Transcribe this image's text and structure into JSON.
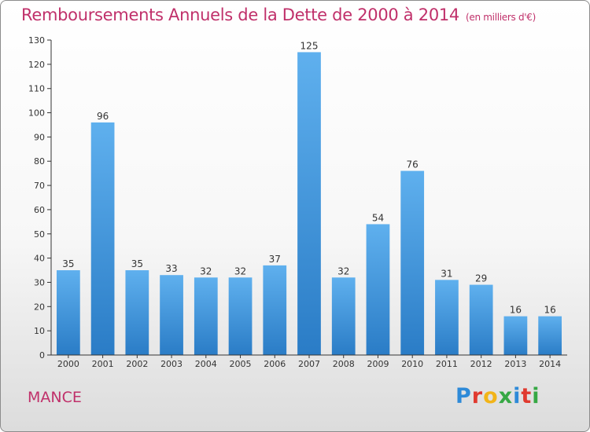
{
  "chart_data": {
    "type": "bar",
    "title": "Remboursements Annuels de la Dette de 2000 à 2014",
    "subtitle": "(en milliers d'€)",
    "categories": [
      "2000",
      "2001",
      "2002",
      "2003",
      "2004",
      "2005",
      "2006",
      "2007",
      "2008",
      "2009",
      "2010",
      "2011",
      "2012",
      "2013",
      "2014"
    ],
    "values": [
      35,
      96,
      35,
      33,
      32,
      32,
      37,
      125,
      32,
      54,
      76,
      31,
      29,
      16,
      16
    ],
    "ylim": [
      0,
      130
    ],
    "yticks": [
      0,
      10,
      20,
      30,
      40,
      50,
      60,
      70,
      80,
      90,
      100,
      110,
      120,
      130
    ],
    "grid": false,
    "bar_color": "#2f86d3"
  },
  "footer": {
    "commune": "MANCE",
    "logo_letters": [
      "P",
      "r",
      "o",
      "x",
      "i",
      "t",
      "i"
    ],
    "logo_colors": [
      "#2e8ad8",
      "#e03a2f",
      "#f2b418",
      "#36a844",
      "#2e8ad8",
      "#e03a2f",
      "#36a844"
    ]
  }
}
